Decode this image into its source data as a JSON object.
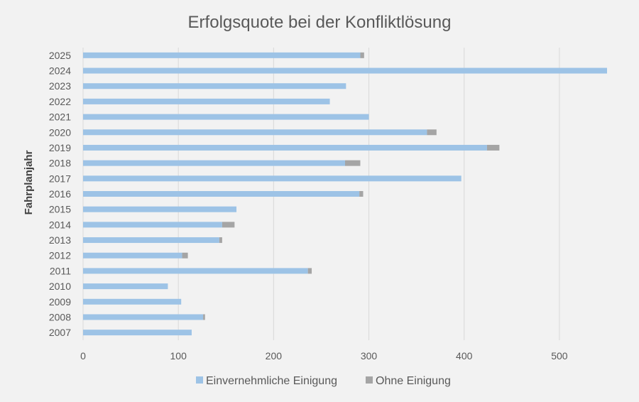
{
  "chart_data": {
    "type": "bar",
    "orientation": "horizontal",
    "stacked": true,
    "title": "Erfolgsquote bei der Konfliktlösung",
    "ylabel": "Fahrplanjahr",
    "xlabel": "",
    "xlim": [
      0,
      550
    ],
    "xticks": [
      "0",
      "100",
      "200",
      "300",
      "400",
      "500"
    ],
    "grid": true,
    "legend": "bottom",
    "categories": [
      "2025",
      "2024",
      "2023",
      "2022",
      "2021",
      "2020",
      "2019",
      "2018",
      "2017",
      "2016",
      "2015",
      "2014",
      "2013",
      "2012",
      "2011",
      "2010",
      "2009",
      "2008",
      "2007"
    ],
    "series": [
      {
        "name": "Einvernehmliche Einigung",
        "color": "#9dc3e6",
        "values": [
          291,
          550,
          276,
          259,
          300,
          361,
          424,
          275,
          397,
          290,
          161,
          146,
          143,
          104,
          236,
          89,
          103,
          126,
          114
        ]
      },
      {
        "name": "Ohne Einigung",
        "color": "#a5a5a5",
        "values": [
          4,
          0,
          0,
          0,
          0,
          10,
          13,
          16,
          0,
          4,
          0,
          13,
          3,
          6,
          4,
          0,
          0,
          2,
          0
        ]
      }
    ]
  }
}
